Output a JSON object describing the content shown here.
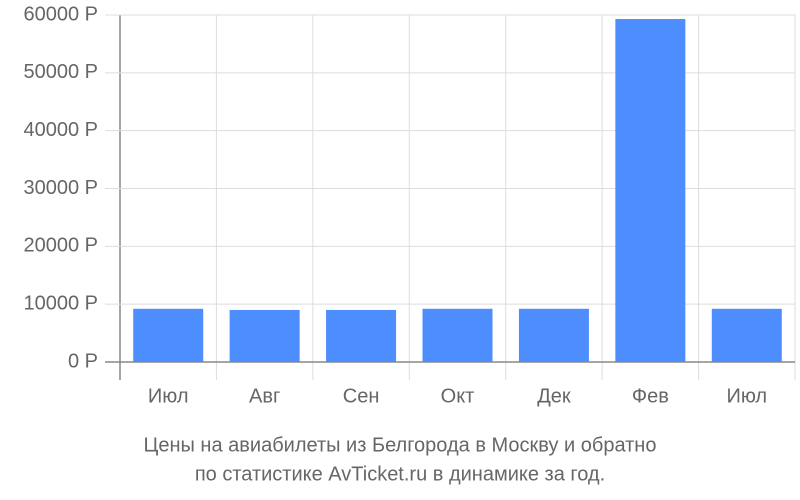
{
  "chart_data": {
    "type": "bar",
    "title": [
      "Цены на авиабилеты из Белгорода в Москву и обратно",
      "по статистике AvTicket.ru в динамике за год."
    ],
    "categories": [
      "Июл",
      "Авг",
      "Сен",
      "Окт",
      "Дек",
      "Фев",
      "Июл"
    ],
    "values": [
      9200,
      9000,
      9000,
      9200,
      9200,
      59300,
      9200
    ],
    "color": "#4d8dfd",
    "ylim": [
      0,
      60000
    ],
    "yticks": [
      {
        "value": 0,
        "label": "0 Р"
      },
      {
        "value": 10000,
        "label": "10000 Р"
      },
      {
        "value": 20000,
        "label": "20000 Р"
      },
      {
        "value": 30000,
        "label": "30000 Р"
      },
      {
        "value": 40000,
        "label": "40000 Р"
      },
      {
        "value": 50000,
        "label": "50000 Р"
      },
      {
        "value": 60000,
        "label": "60000 Р"
      }
    ],
    "grid": true
  }
}
